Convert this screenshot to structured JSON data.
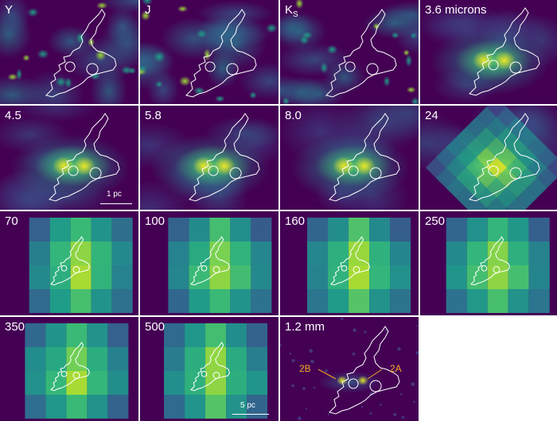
{
  "panels": [
    {
      "label": "Y",
      "style": "nir"
    },
    {
      "label": "J",
      "style": "nir"
    },
    {
      "label": "K",
      "label_sub": "S",
      "style": "nir"
    },
    {
      "label": "3.6 microns",
      "style": "mir"
    },
    {
      "label": "4.5",
      "style": "mir",
      "scalebar": "1 pc"
    },
    {
      "label": "5.8",
      "style": "mir"
    },
    {
      "label": "8.0",
      "style": "mir"
    },
    {
      "label": "24",
      "style": "m24"
    },
    {
      "label": "70",
      "style": "coarse"
    },
    {
      "label": "100",
      "style": "coarse"
    },
    {
      "label": "160",
      "style": "coarse"
    },
    {
      "label": "250",
      "style": "coarse"
    },
    {
      "label": "350",
      "style": "coarse"
    },
    {
      "label": "500",
      "style": "coarse",
      "scalebar": "5 pc"
    },
    {
      "label": "1.2 mm",
      "style": "mm",
      "annotations": [
        "2B",
        "2A"
      ]
    }
  ],
  "colors": {
    "viridis_low": "#440154",
    "viridis_high": "#fde725",
    "contour": "#ffffff",
    "annotation": "#f5a623"
  }
}
